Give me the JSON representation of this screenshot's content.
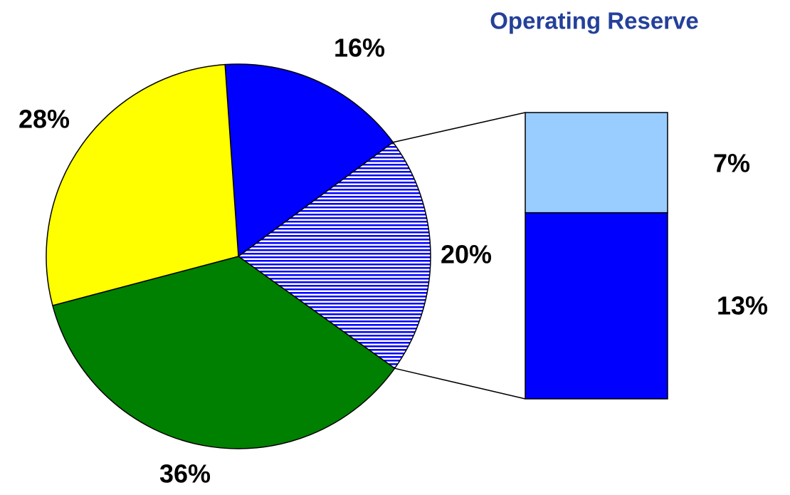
{
  "chart_data": [
    {
      "type": "pie",
      "values": [
        16,
        20,
        36,
        28
      ],
      "value_labels": [
        "16%",
        "20%",
        "36%",
        "28%"
      ],
      "colors": [
        "#0000ff",
        "#0000ff",
        "#008000",
        "#ffff00"
      ],
      "hatched": [
        false,
        true,
        false,
        false
      ]
    },
    {
      "type": "bar",
      "title": "Operating Reserve",
      "values": [
        7,
        13
      ],
      "value_labels": [
        "7%",
        "13%"
      ],
      "colors": [
        "#99ccff",
        "#0000ff"
      ]
    }
  ]
}
